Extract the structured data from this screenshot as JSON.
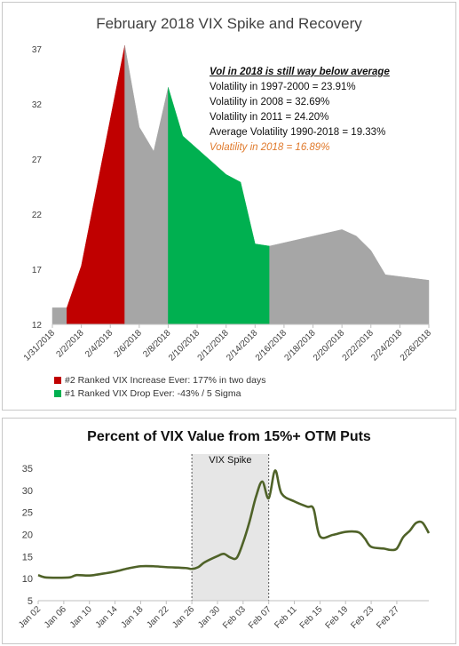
{
  "chart_data": [
    {
      "type": "area",
      "title": "February 2018 VIX Spike and Recovery",
      "ylim": [
        12,
        37
      ],
      "yticks": [
        "12",
        "17",
        "22",
        "27",
        "32",
        "37"
      ],
      "xticks": [
        "1/31/2018",
        "2/2/2018",
        "2/4/2018",
        "2/6/2018",
        "2/8/2018",
        "2/10/2018",
        "2/12/2018",
        "2/14/2018",
        "2/16/2018",
        "2/18/2018",
        "2/20/2018",
        "2/22/2018",
        "2/24/2018",
        "2/26/2018"
      ],
      "series": [
        {
          "color": "#a6a6a6",
          "points": [
            [
              "1/31/2018",
              13.5
            ],
            [
              "2/1/2018",
              13.5
            ]
          ]
        },
        {
          "color": "#c00000",
          "points": [
            [
              "2/1/2018",
              13.5
            ],
            [
              "2/2/2018",
              17.3
            ],
            [
              "2/5/2018",
              37.3
            ]
          ]
        },
        {
          "color": "#a6a6a6",
          "points": [
            [
              "2/5/2018",
              37.3
            ],
            [
              "2/6/2018",
              29.9
            ],
            [
              "2/7/2018",
              27.7
            ],
            [
              "2/8/2018",
              33.5
            ]
          ]
        },
        {
          "color": "#00b050",
          "points": [
            [
              "2/8/2018",
              33.5
            ],
            [
              "2/9/2018",
              29.1
            ],
            [
              "2/12/2018",
              25.6
            ],
            [
              "2/13/2018",
              24.9
            ],
            [
              "2/14/2018",
              19.3
            ],
            [
              "2/15/2018",
              19.1
            ]
          ]
        },
        {
          "color": "#a6a6a6",
          "points": [
            [
              "2/15/2018",
              19.1
            ],
            [
              "2/20/2018",
              20.6
            ],
            [
              "2/21/2018",
              20.0
            ],
            [
              "2/22/2018",
              18.7
            ],
            [
              "2/23/2018",
              16.5
            ],
            [
              "2/26/2018",
              16.0
            ]
          ]
        }
      ],
      "annotation": {
        "header": "Vol in 2018 is still way below average",
        "lines": [
          "Volatility in 1997-2000 = 23.91%",
          "Volatility in 2008 = 32.69%",
          "Volatility in 2011 = 24.20%",
          "Average Volatility 1990-2018 = 19.33%"
        ],
        "highlight": "Volatility in 2018 = 16.89%",
        "highlight_color": "#e07a2c"
      },
      "legend": [
        {
          "label": "#2 Ranked VIX Increase Ever: 177% in two days",
          "color": "#c00000"
        },
        {
          "label": "#1 Ranked VIX Drop Ever: -43% / 5 Sigma",
          "color": "#00b050"
        }
      ]
    },
    {
      "type": "line",
      "title": "Percent of VIX Value from 15%+ OTM Puts",
      "ylim": [
        5,
        35
      ],
      "yticks": [
        "5",
        "10",
        "15",
        "20",
        "25",
        "30",
        "35"
      ],
      "xticks": [
        "Jan 02",
        "Jan 06",
        "Jan 10",
        "Jan 14",
        "Jan 18",
        "Jan 22",
        "Jan 26",
        "Jan 30",
        "Feb 03",
        "Feb 07",
        "Feb 11",
        "Feb 15",
        "Feb 19",
        "Feb 23",
        "Feb 27"
      ],
      "line_color": "#4f6228",
      "series": [
        {
          "points": [
            [
              "Jan 02",
              10.8
            ],
            [
              "Jan 03",
              10.3
            ],
            [
              "Jan 05",
              10.2
            ],
            [
              "Jan 07",
              10.3
            ],
            [
              "Jan 08",
              10.8
            ],
            [
              "Jan 10",
              10.7
            ],
            [
              "Jan 12",
              11.1
            ],
            [
              "Jan 14",
              11.6
            ],
            [
              "Jan 16",
              12.3
            ],
            [
              "Jan 18",
              12.8
            ],
            [
              "Jan 20",
              12.8
            ],
            [
              "Jan 22",
              12.6
            ],
            [
              "Jan 25",
              12.4
            ],
            [
              "Jan 26",
              12.2
            ],
            [
              "Jan 27",
              12.6
            ],
            [
              "Jan 28",
              13.7
            ],
            [
              "Jan 30",
              15.1
            ],
            [
              "Jan 31",
              15.6
            ],
            [
              "Feb 01",
              14.8
            ],
            [
              "Feb 02",
              14.7
            ],
            [
              "Feb 03",
              18.2
            ],
            [
              "Feb 04",
              22.9
            ],
            [
              "Feb 05",
              28.5
            ],
            [
              "Feb 06",
              32.0
            ],
            [
              "Feb 07",
              28.2
            ],
            [
              "Feb 08",
              34.5
            ],
            [
              "Feb 09",
              29.3
            ],
            [
              "Feb 11",
              27.5
            ],
            [
              "Feb 13",
              26.3
            ],
            [
              "Feb 14",
              25.8
            ],
            [
              "Feb 15",
              19.6
            ],
            [
              "Feb 17",
              19.9
            ],
            [
              "Feb 19",
              20.6
            ],
            [
              "Feb 21",
              20.5
            ],
            [
              "Feb 22",
              19.1
            ],
            [
              "Feb 23",
              17.2
            ],
            [
              "Feb 25",
              16.8
            ],
            [
              "Feb 26",
              16.5
            ],
            [
              "Feb 27",
              16.8
            ],
            [
              "Feb 28",
              19.4
            ],
            [
              "Mar 01",
              20.8
            ],
            [
              "Mar 02",
              22.6
            ],
            [
              "Mar 03",
              22.7
            ],
            [
              "Mar 04",
              20.3
            ]
          ]
        }
      ],
      "shaded_region": {
        "label": "VIX Spike",
        "x_from": "Jan 26",
        "x_to": "Feb 07"
      }
    }
  ]
}
